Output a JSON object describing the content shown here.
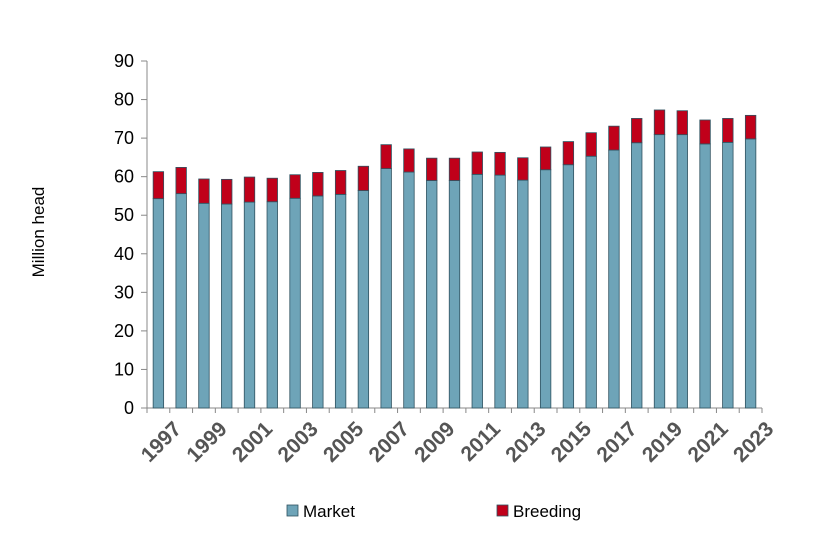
{
  "chart_data": {
    "type": "bar",
    "stacked": true,
    "categories": [
      "1997",
      "1998",
      "1999",
      "2000",
      "2001",
      "2002",
      "2003",
      "2004",
      "2005",
      "2006",
      "2007",
      "2008",
      "2009",
      "2010",
      "2011",
      "2012",
      "2013",
      "2014",
      "2015",
      "2016",
      "2017",
      "2018",
      "2019",
      "2020",
      "2021",
      "2022",
      "2023"
    ],
    "x_tick_labels": [
      "1997",
      "1999",
      "2001",
      "2003",
      "2005",
      "2007",
      "2009",
      "2011",
      "2013",
      "2015",
      "2017",
      "2019",
      "2021",
      "2023"
    ],
    "series": [
      {
        "name": "Market",
        "color": "#6ea4b8",
        "values": [
          54.3,
          55.6,
          53.1,
          52.9,
          53.4,
          53.5,
          54.4,
          55.0,
          55.4,
          56.4,
          62.1,
          61.2,
          59.0,
          59.0,
          60.6,
          60.4,
          59.1,
          61.8,
          63.1,
          65.3,
          66.9,
          68.8,
          70.9,
          70.9,
          68.5,
          68.9,
          69.8
        ]
      },
      {
        "name": "Breeding",
        "color": "#c0001a",
        "values": [
          7.0,
          6.8,
          6.3,
          6.4,
          6.5,
          6.1,
          6.1,
          6.1,
          6.2,
          6.3,
          6.2,
          6.0,
          5.8,
          5.8,
          5.8,
          5.9,
          5.8,
          5.9,
          6.0,
          6.1,
          6.2,
          6.3,
          6.4,
          6.2,
          6.2,
          6.2,
          6.1
        ]
      }
    ],
    "ylabel": "Million head",
    "xlabel": "",
    "title": "",
    "ylim": [
      0,
      90
    ],
    "yticks": [
      0,
      10,
      20,
      30,
      40,
      50,
      60,
      70,
      80,
      90
    ],
    "grid": false,
    "legend_position": "bottom"
  }
}
